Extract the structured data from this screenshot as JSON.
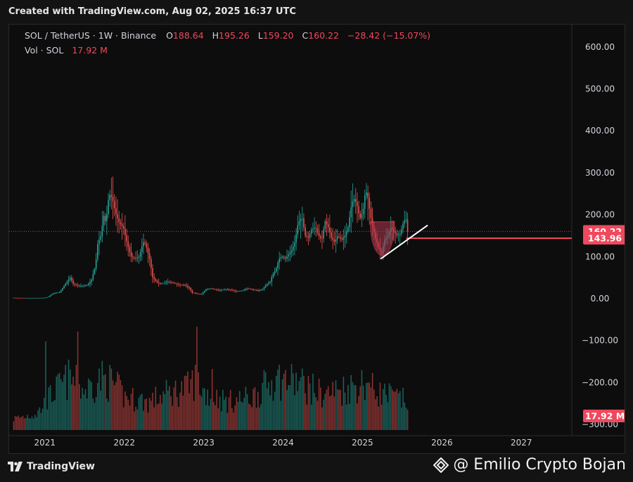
{
  "header": {
    "created_text": "Created with TradingView.com, Aug 02, 2025 16:37 UTC"
  },
  "legend": {
    "symbol": "SOL / TetherUS · 1W · Binance",
    "open_label": "O",
    "open": "188.64",
    "high_label": "H",
    "high": "195.26",
    "low_label": "L",
    "low": "159.20",
    "close_label": "C",
    "close": "160.22",
    "change": "−28.42 (−15.07%)",
    "vol_label": "Vol · SOL",
    "vol_value": "17.92 M"
  },
  "price_labels": {
    "last_price": "160.22",
    "support": "143.96",
    "volume": "17.92 M"
  },
  "footer": {
    "brand": "TradingView",
    "watermark": "@ Emilio Crypto Bojan"
  },
  "colors": {
    "up": "#26a69a",
    "down": "#ef5350",
    "line_red": "#f0485c",
    "trendline": "#ffffff",
    "cup_fill": "#b2364e"
  },
  "chart_data": {
    "type": "candlestick",
    "symbol": "SOL / TetherUS",
    "interval": "1W",
    "exchange": "Binance",
    "y_ticks": [
      "600.00",
      "500.00",
      "400.00",
      "300.00",
      "200.00",
      "100.00",
      "0.00",
      "−100.00",
      "−200.00",
      "−300.00"
    ],
    "y_tick_values": [
      600,
      500,
      400,
      300,
      200,
      100,
      0,
      -100,
      -200,
      -300
    ],
    "x_ticks": [
      "2021",
      "2022",
      "2023",
      "2024",
      "2025",
      "2026",
      "2027"
    ],
    "x_tick_years": [
      2021,
      2022,
      2023,
      2024,
      2025,
      2026,
      2027
    ],
    "x_range": [
      2020.55,
      2027.6
    ],
    "y_range": [
      -310,
      645
    ],
    "last_date": 2025.58,
    "horizontal_lines": [
      {
        "name": "last-price",
        "value": 160.22,
        "style": "dotted"
      },
      {
        "name": "support",
        "value": 143.96,
        "style": "solid",
        "from": 2025.55
      }
    ],
    "trendline": {
      "from": [
        2025.23,
        95
      ],
      "to": [
        2025.82,
        175
      ]
    },
    "cup": {
      "from": 2025.1,
      "to": 2025.4,
      "top": 183,
      "bottom": 97
    },
    "price_path": [
      [
        2020.6,
        2
      ],
      [
        2020.75,
        1.5
      ],
      [
        2020.9,
        1.6
      ],
      [
        2021.0,
        1.8
      ],
      [
        2021.05,
        3.5
      ],
      [
        2021.12,
        13
      ],
      [
        2021.2,
        15
      ],
      [
        2021.28,
        38
      ],
      [
        2021.33,
        50
      ],
      [
        2021.37,
        35
      ],
      [
        2021.45,
        30
      ],
      [
        2021.55,
        32
      ],
      [
        2021.6,
        45
      ],
      [
        2021.65,
        80
      ],
      [
        2021.68,
        135
      ],
      [
        2021.72,
        150
      ],
      [
        2021.75,
        200
      ],
      [
        2021.78,
        180
      ],
      [
        2021.82,
        250
      ],
      [
        2021.86,
        240
      ],
      [
        2021.9,
        205
      ],
      [
        2021.95,
        180
      ],
      [
        2022.0,
        170
      ],
      [
        2022.05,
        130
      ],
      [
        2022.1,
        100
      ],
      [
        2022.15,
        95
      ],
      [
        2022.2,
        100
      ],
      [
        2022.25,
        135
      ],
      [
        2022.28,
        130
      ],
      [
        2022.33,
        95
      ],
      [
        2022.37,
        50
      ],
      [
        2022.42,
        40
      ],
      [
        2022.47,
        35
      ],
      [
        2022.55,
        40
      ],
      [
        2022.62,
        38
      ],
      [
        2022.7,
        33
      ],
      [
        2022.78,
        32
      ],
      [
        2022.83,
        25
      ],
      [
        2022.87,
        14
      ],
      [
        2022.92,
        12
      ],
      [
        2022.98,
        10
      ],
      [
        2023.04,
        22
      ],
      [
        2023.1,
        24
      ],
      [
        2023.15,
        22
      ],
      [
        2023.2,
        20
      ],
      [
        2023.28,
        22
      ],
      [
        2023.35,
        21
      ],
      [
        2023.42,
        17
      ],
      [
        2023.5,
        19
      ],
      [
        2023.55,
        24
      ],
      [
        2023.62,
        22
      ],
      [
        2023.7,
        19
      ],
      [
        2023.75,
        22
      ],
      [
        2023.8,
        33
      ],
      [
        2023.85,
        40
      ],
      [
        2023.88,
        58
      ],
      [
        2023.92,
        68
      ],
      [
        2023.96,
        95
      ],
      [
        2024.0,
        100
      ],
      [
        2024.04,
        95
      ],
      [
        2024.08,
        105
      ],
      [
        2024.12,
        115
      ],
      [
        2024.16,
        135
      ],
      [
        2024.2,
        180
      ],
      [
        2024.25,
        195
      ],
      [
        2024.29,
        150
      ],
      [
        2024.33,
        145
      ],
      [
        2024.37,
        165
      ],
      [
        2024.42,
        170
      ],
      [
        2024.46,
        150
      ],
      [
        2024.5,
        140
      ],
      [
        2024.54,
        185
      ],
      [
        2024.58,
        170
      ],
      [
        2024.62,
        145
      ],
      [
        2024.66,
        135
      ],
      [
        2024.7,
        150
      ],
      [
        2024.75,
        140
      ],
      [
        2024.79,
        150
      ],
      [
        2024.83,
        170
      ],
      [
        2024.87,
        220
      ],
      [
        2024.9,
        240
      ],
      [
        2024.94,
        225
      ],
      [
        2024.98,
        190
      ],
      [
        2025.02,
        210
      ],
      [
        2025.05,
        260
      ],
      [
        2025.08,
        240
      ],
      [
        2025.11,
        200
      ],
      [
        2025.14,
        170
      ],
      [
        2025.18,
        140
      ],
      [
        2025.22,
        120
      ],
      [
        2025.25,
        105
      ],
      [
        2025.29,
        140
      ],
      [
        2025.33,
        150
      ],
      [
        2025.37,
        170
      ],
      [
        2025.41,
        160
      ],
      [
        2025.45,
        150
      ],
      [
        2025.49,
        155
      ],
      [
        2025.53,
        185
      ],
      [
        2025.56,
        190
      ],
      [
        2025.58,
        160
      ]
    ],
    "volume_path": [
      [
        2020.6,
        0.12
      ],
      [
        2020.9,
        0.18
      ],
      [
        2021.1,
        0.4
      ],
      [
        2021.3,
        0.55
      ],
      [
        2021.5,
        0.42
      ],
      [
        2021.7,
        0.55
      ],
      [
        2021.85,
        0.5
      ],
      [
        2022.0,
        0.35
      ],
      [
        2022.3,
        0.3
      ],
      [
        2022.5,
        0.38
      ],
      [
        2022.8,
        0.45
      ],
      [
        2022.9,
        0.55
      ],
      [
        2023.0,
        0.4
      ],
      [
        2023.3,
        0.3
      ],
      [
        2023.6,
        0.35
      ],
      [
        2023.9,
        0.55
      ],
      [
        2024.2,
        0.5
      ],
      [
        2024.5,
        0.38
      ],
      [
        2024.8,
        0.45
      ],
      [
        2025.0,
        0.5
      ],
      [
        2025.2,
        0.4
      ],
      [
        2025.58,
        0.3
      ]
    ],
    "volume_spikes": [
      [
        2021.0,
        0.9
      ],
      [
        2021.4,
        1.0
      ],
      [
        2022.9,
        1.05
      ],
      [
        2023.1,
        0.62
      ],
      [
        2023.9,
        0.55
      ],
      [
        2024.25,
        0.55
      ],
      [
        2025.05,
        0.48
      ]
    ],
    "volume_max_px": 140
  }
}
